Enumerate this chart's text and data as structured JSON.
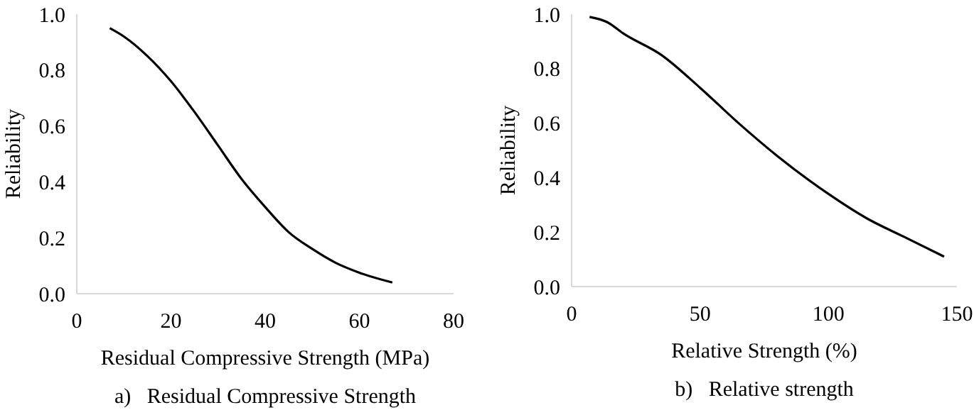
{
  "chart_data": [
    {
      "type": "line",
      "title": "a)   Residual Compressive Strength",
      "xlabel": "Residual Compressive Strength (MPa)",
      "ylabel": "Reliability",
      "x": [
        7,
        10,
        15,
        20,
        25,
        30,
        35,
        40,
        45,
        50,
        55,
        60,
        67
      ],
      "series": [
        {
          "color": "#000000",
          "values": [
            0.95,
            0.92,
            0.85,
            0.76,
            0.65,
            0.53,
            0.41,
            0.31,
            0.22,
            0.16,
            0.11,
            0.075,
            0.04
          ]
        }
      ],
      "xlim": [
        0,
        80
      ],
      "xticks": [
        0,
        20,
        40,
        60,
        80
      ],
      "ylim": [
        0,
        1
      ],
      "yticks": [
        {
          "value": 0,
          "label": "0.0"
        },
        {
          "value": 0.2,
          "label": "0.2"
        },
        {
          "value": 0.4,
          "label": "0.4"
        },
        {
          "value": 0.6,
          "label": "0.6"
        },
        {
          "value": 0.8,
          "label": "0.8"
        },
        {
          "value": 1,
          "label": "1.0"
        }
      ],
      "grid": false
    },
    {
      "type": "line",
      "title": "b)   Relative strength",
      "xlabel": "Relative Strength (%)",
      "ylabel": "Reliability",
      "x": [
        7,
        14,
        20,
        35,
        50,
        65,
        80,
        100,
        115,
        130,
        145
      ],
      "series": [
        {
          "color": "#000000",
          "values": [
            0.99,
            0.97,
            0.93,
            0.85,
            0.73,
            0.6,
            0.48,
            0.34,
            0.25,
            0.18,
            0.11
          ]
        }
      ],
      "xlim": [
        0,
        150
      ],
      "xticks": [
        0,
        50,
        100,
        150
      ],
      "ylim": [
        0,
        1
      ],
      "yticks": [
        {
          "value": 0,
          "label": "0.0"
        },
        {
          "value": 0.2,
          "label": "0.2"
        },
        {
          "value": 0.4,
          "label": "0.4"
        },
        {
          "value": 0.6,
          "label": "0.6"
        },
        {
          "value": 0.8,
          "label": "0.8"
        },
        {
          "value": 1,
          "label": "1.0"
        }
      ],
      "grid": false
    }
  ]
}
